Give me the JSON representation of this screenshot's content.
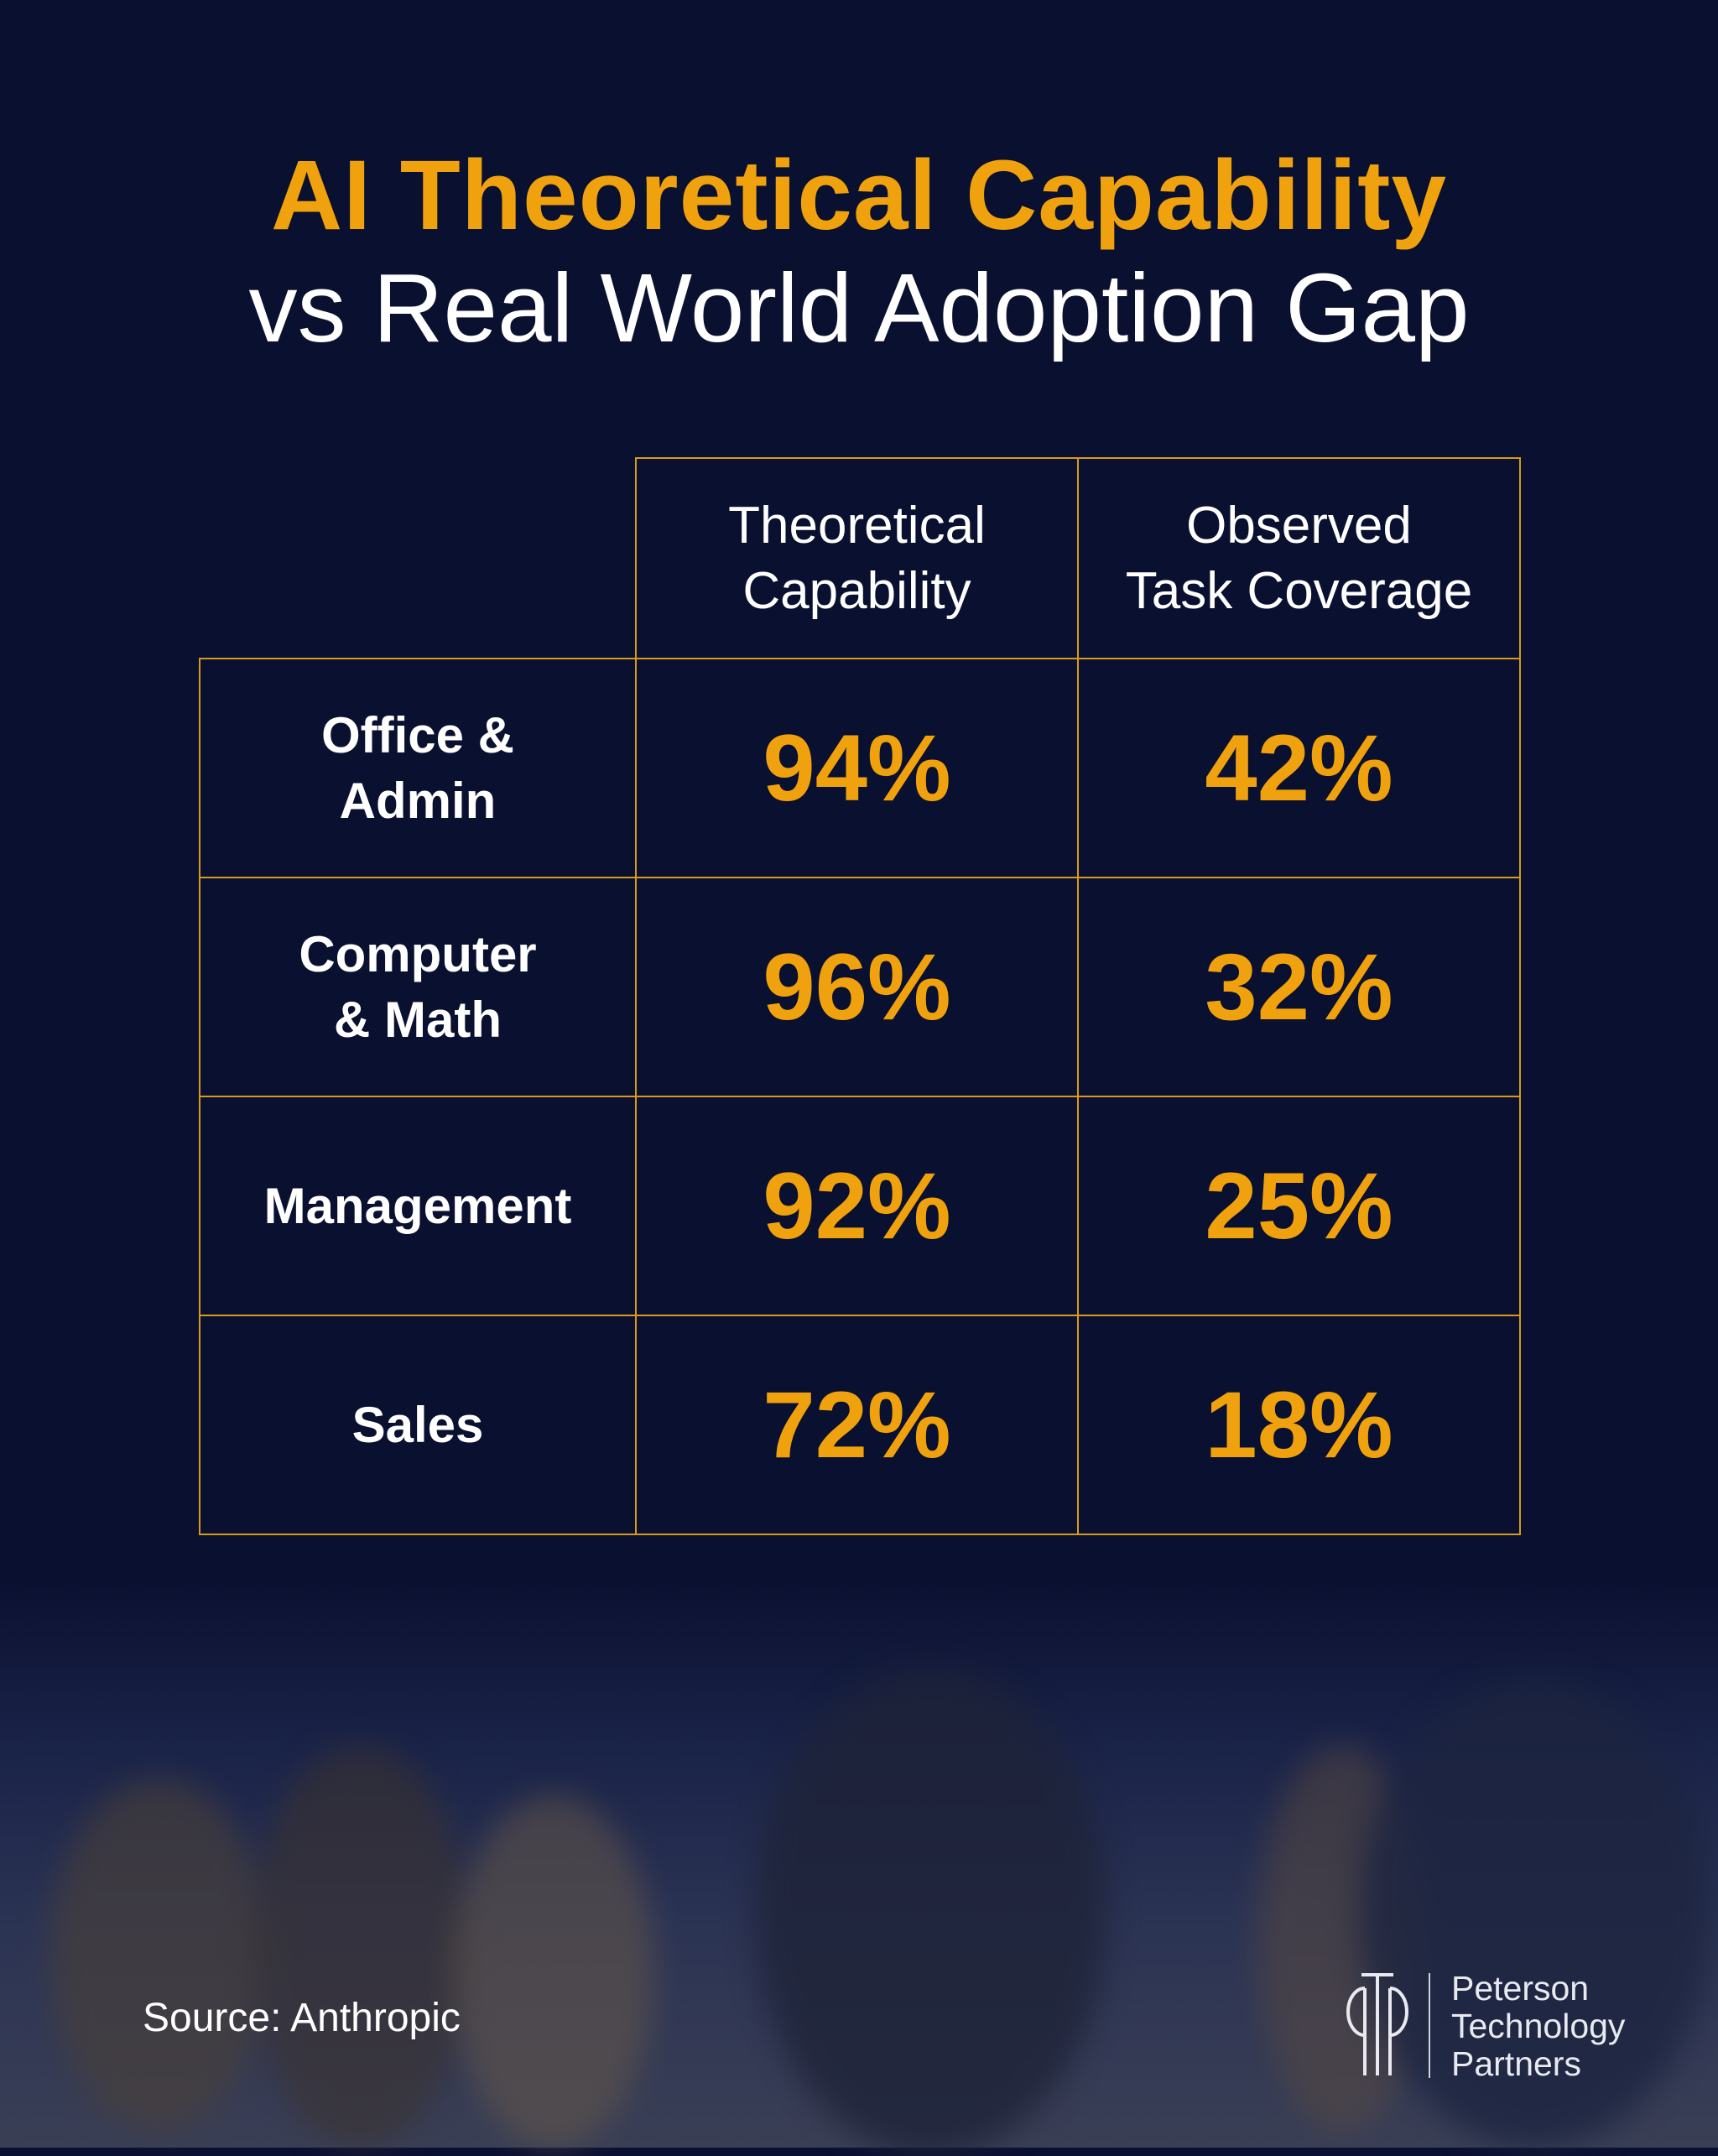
{
  "title": {
    "line1": "AI Theoretical Capability",
    "line2": "vs Real World Adoption Gap"
  },
  "colors": {
    "background": "#0a1030",
    "accent": "#f0a20e",
    "grid": "#d99a1c"
  },
  "table": {
    "headers": [
      "Theoretical\nCapability",
      "Observed\nTask Coverage"
    ],
    "header_lines": [
      [
        "Theoretical",
        "Capability"
      ],
      [
        "Observed",
        "Task Coverage"
      ]
    ],
    "rows": [
      {
        "label_lines": [
          "Office &",
          "Admin"
        ],
        "theoretical": "94%",
        "observed": "42%"
      },
      {
        "label_lines": [
          "Computer",
          "& Math"
        ],
        "theoretical": "96%",
        "observed": "32%"
      },
      {
        "label_lines": [
          "Management",
          ""
        ],
        "theoretical": "92%",
        "observed": "25%"
      },
      {
        "label_lines": [
          "Sales",
          ""
        ],
        "theoretical": "72%",
        "observed": "18%"
      }
    ]
  },
  "footer": {
    "source": "Source: Anthropic",
    "brand_lines": [
      "Peterson",
      "Technology",
      "Partners"
    ],
    "logo_icon": "ptp-monogram-icon"
  }
}
